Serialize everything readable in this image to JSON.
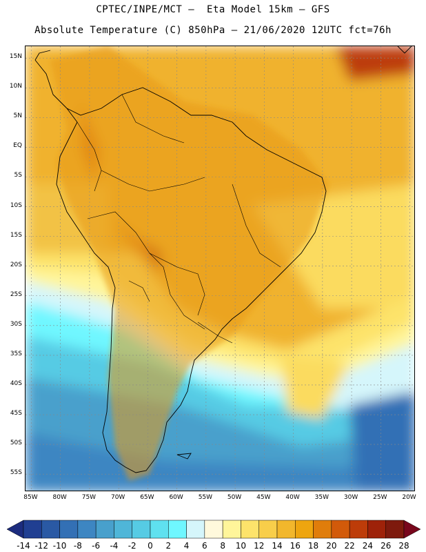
{
  "title": {
    "line1": "CPTEC/INPE/MCT –  Eta Model 15km – GFS",
    "line2": "Absolute Temperature (C) 850hPa – 21/06/2020 12UTC fct=76h"
  },
  "map": {
    "lat_labels": [
      "15N",
      "10N",
      "5N",
      "EQ",
      "5S",
      "10S",
      "15S",
      "20S",
      "25S",
      "30S",
      "35S",
      "40S",
      "45S",
      "50S",
      "55S"
    ],
    "lon_labels": [
      "85W",
      "80W",
      "75W",
      "70W",
      "65W",
      "60W",
      "55W",
      "50W",
      "45W",
      "40W",
      "35W",
      "30W",
      "25W",
      "20W"
    ],
    "lat_values": [
      15,
      10,
      5,
      0,
      -5,
      -10,
      -15,
      -20,
      -25,
      -30,
      -35,
      -40,
      -45,
      -50,
      -55
    ],
    "lon_values": [
      -85,
      -80,
      -75,
      -70,
      -65,
      -60,
      -55,
      -50,
      -45,
      -40,
      -35,
      -30,
      -25,
      -20
    ],
    "lat_range": [
      -58,
      17
    ],
    "lon_range": [
      -86,
      -19
    ],
    "grid": true
  },
  "colorbar": {
    "labels": [
      "-14",
      "-12",
      "-10",
      "-8",
      "-6",
      "-4",
      "-2",
      "0",
      "2",
      "4",
      "6",
      "8",
      "10",
      "12",
      "14",
      "16",
      "18",
      "20",
      "22",
      "24",
      "26",
      "28"
    ],
    "colors": [
      "#203f92",
      "#2a59a4",
      "#3370b5",
      "#3d86c2",
      "#48a0cc",
      "#4fb6d8",
      "#56cbe4",
      "#5fe1ef",
      "#6ff7ff",
      "#d5f6fb",
      "#fff9dc",
      "#fff59a",
      "#fde36b",
      "#f8ce4a",
      "#f2b72c",
      "#eea50f",
      "#e07d0b",
      "#d25a0a",
      "#bd3c09",
      "#9e2209",
      "#7e1a0d"
    ],
    "end_low_color": "#1c2c7e",
    "end_high_color": "#78061c"
  }
}
